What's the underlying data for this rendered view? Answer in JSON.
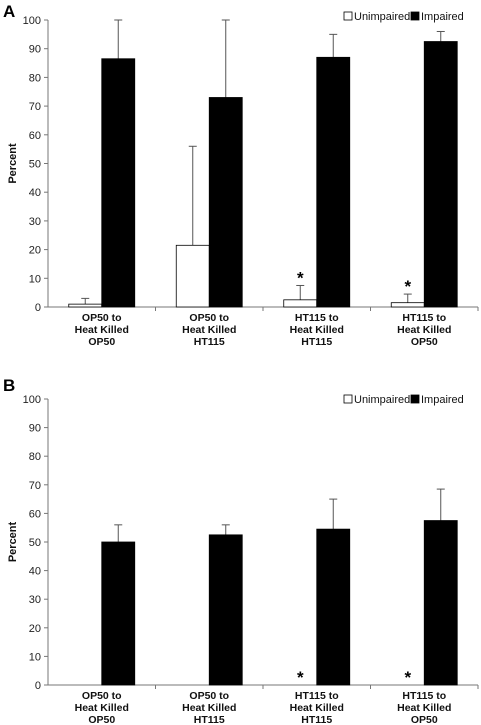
{
  "chart_data": [
    {
      "panel": "A",
      "type": "bar",
      "ylabel": "Percent",
      "ylim": [
        0,
        100
      ],
      "yticks": [
        0,
        10,
        20,
        30,
        40,
        50,
        60,
        70,
        80,
        90,
        100
      ],
      "grid": false,
      "legend_position": "top-right",
      "categories": [
        [
          "OP50 to",
          "Heat Killed",
          "OP50"
        ],
        [
          "OP50 to",
          "Heat Killed",
          "HT115"
        ],
        [
          "HT115 to",
          "Heat Killed",
          "HT115"
        ],
        [
          "HT115 to",
          "Heat Killed",
          "OP50"
        ]
      ],
      "series": [
        {
          "name": "Unimpaired",
          "fill": "#ffffff",
          "values": [
            1,
            21.5,
            2.5,
            1.5
          ],
          "errors": [
            2,
            34.5,
            5,
            3
          ]
        },
        {
          "name": "Impaired",
          "fill": "#000000",
          "values": [
            86.5,
            73,
            87,
            92.5
          ],
          "errors": [
            13.5,
            27,
            8,
            3.5
          ]
        }
      ],
      "annotations": [
        {
          "text": "*",
          "category": 2,
          "series": 0
        },
        {
          "text": "*",
          "category": 3,
          "series": 0
        }
      ]
    },
    {
      "panel": "B",
      "type": "bar",
      "ylabel": "Percent",
      "ylim": [
        0,
        100
      ],
      "yticks": [
        0,
        10,
        20,
        30,
        40,
        50,
        60,
        70,
        80,
        90,
        100
      ],
      "grid": false,
      "legend_position": "top-right",
      "categories": [
        [
          "OP50 to",
          "Heat Killed",
          "OP50"
        ],
        [
          "OP50 to",
          "Heat Killed",
          "HT115"
        ],
        [
          "HT115 to",
          "Heat Killed",
          "HT115"
        ],
        [
          "HT115 to",
          "Heat Killed",
          "OP50"
        ]
      ],
      "series": [
        {
          "name": "Unimpaired",
          "fill": "#ffffff",
          "values": [
            0,
            0,
            0,
            0
          ],
          "errors": [
            0,
            0,
            0,
            0
          ]
        },
        {
          "name": "Impaired",
          "fill": "#000000",
          "values": [
            50,
            52.5,
            54.5,
            57.5
          ],
          "errors": [
            6,
            3.5,
            10.5,
            11
          ]
        }
      ],
      "annotations": [
        {
          "text": "*",
          "category": 2,
          "series": 0
        },
        {
          "text": "*",
          "category": 3,
          "series": 0
        }
      ]
    }
  ]
}
